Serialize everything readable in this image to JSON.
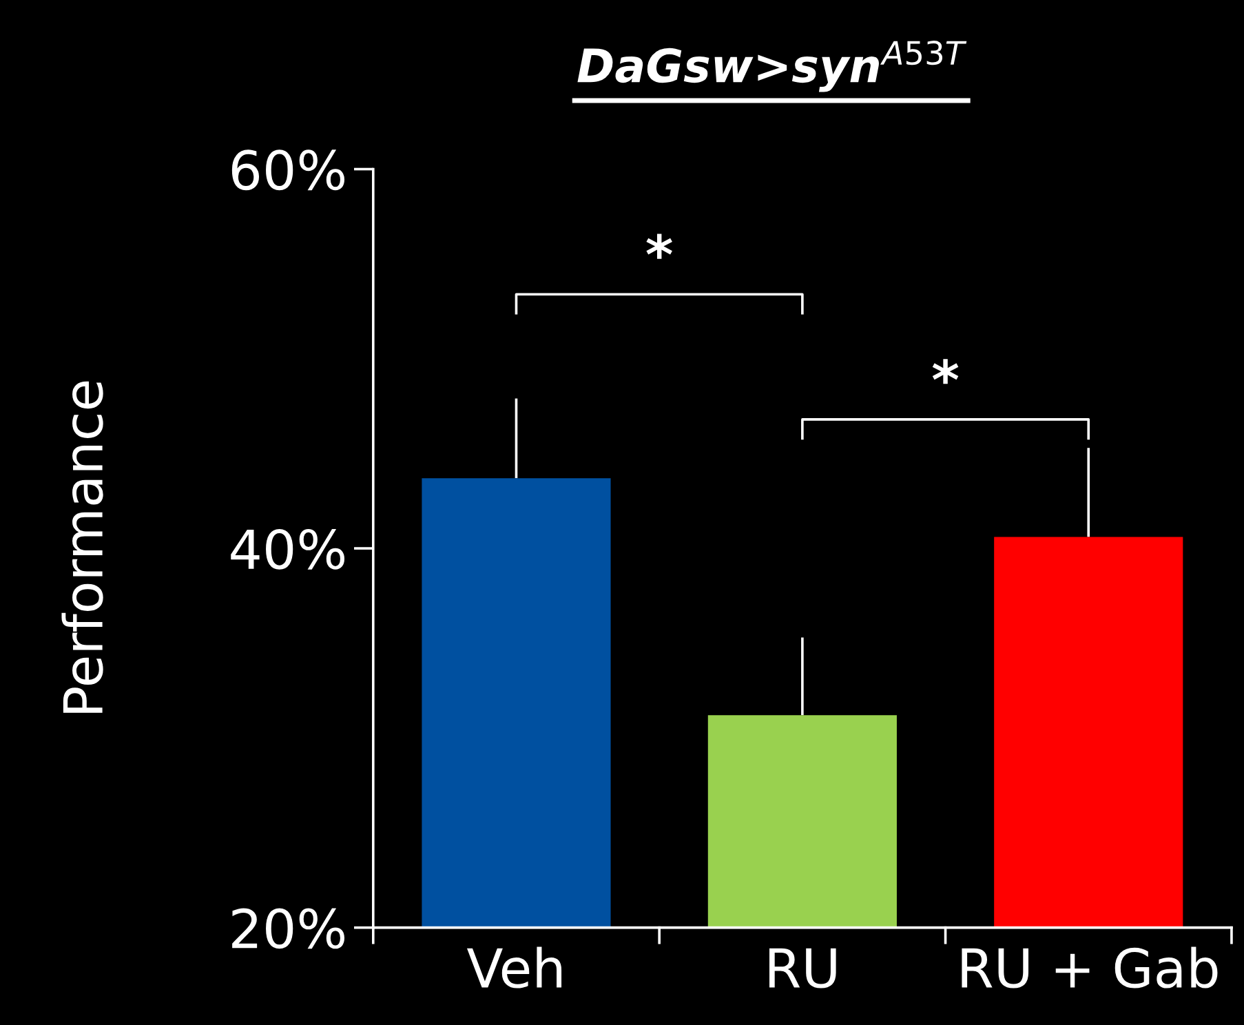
{
  "chart_data": {
    "type": "bar",
    "title": "DaGsw>syn$^{A53T}$",
    "ylabel": "Performance",
    "categories": [
      "Veh",
      "RU",
      "RU + Gab"
    ],
    "values": [
      43.7,
      31.2,
      40.6
    ],
    "colors": [
      "#0050a0",
      "#99d14f",
      "#ff0000"
    ],
    "errors": [
      [
        43.7,
        47.9
      ],
      [
        31.2,
        35.3
      ],
      [
        40.6,
        45.3
      ]
    ],
    "ylim": [
      20,
      60
    ],
    "yticks": [
      {
        "value": 20,
        "label": "20%"
      },
      {
        "value": 40,
        "label": "40%"
      },
      {
        "value": 60,
        "label": "60%"
      }
    ],
    "annotations": [
      "*",
      "*"
    ],
    "grid": false,
    "legend": false
  }
}
